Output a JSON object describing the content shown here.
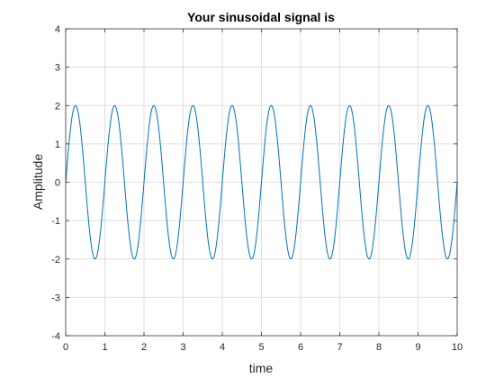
{
  "chart_data": {
    "type": "line",
    "title": "Your sinusoidal signal is",
    "xlabel": "time",
    "ylabel": "Amplitude",
    "xlim": [
      0,
      10
    ],
    "ylim": [
      -4,
      4
    ],
    "xticks": [
      "0",
      "1",
      "2",
      "3",
      "4",
      "5",
      "6",
      "7",
      "8",
      "9",
      "10"
    ],
    "yticks": [
      "4",
      "3",
      "2",
      "1",
      "0",
      "-1",
      "-2",
      "-3",
      "-4"
    ],
    "grid": true,
    "series": [
      {
        "amplitude": 2,
        "frequency": 1,
        "x_start": 0,
        "x_end": 10,
        "color": "#0072BD"
      }
    ]
  }
}
